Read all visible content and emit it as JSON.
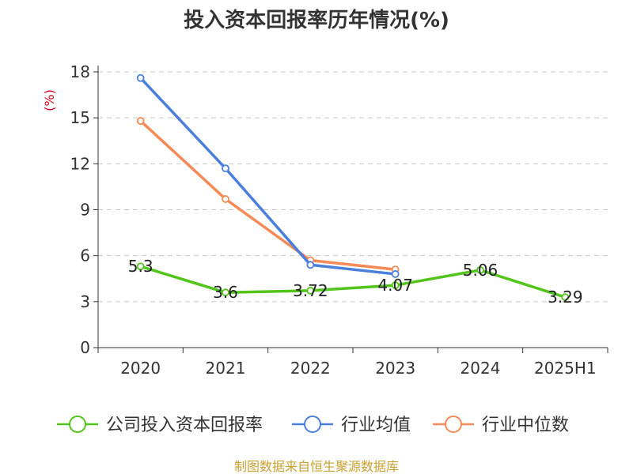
{
  "chart_data": {
    "type": "line",
    "title": "投入资本回报率历年情况(%)",
    "ylabel": "(%)",
    "xlabel": "",
    "categories": [
      "2020",
      "2021",
      "2022",
      "2023",
      "2024",
      "2025H1"
    ],
    "ylim": [
      0,
      18
    ],
    "yticks": [
      0,
      3,
      6,
      9,
      12,
      15,
      18
    ],
    "grid": true,
    "legend_position": "bottom",
    "series": [
      {
        "name": "公司投入资本回报率",
        "color": "#52c41a",
        "values": [
          5.3,
          3.6,
          3.72,
          4.07,
          5.06,
          3.29
        ],
        "labels": [
          "5.3",
          "3.6",
          "3.72",
          "4.07",
          "5.06",
          "3.29"
        ]
      },
      {
        "name": "行业均值",
        "color": "#4a7fdc",
        "values": [
          17.6,
          11.7,
          5.4,
          4.8,
          null,
          null
        ]
      },
      {
        "name": "行业中位数",
        "color": "#f58a57",
        "values": [
          14.8,
          9.7,
          5.7,
          5.1,
          null,
          null
        ]
      }
    ]
  },
  "source": "制图数据来自恒生聚源数据库"
}
